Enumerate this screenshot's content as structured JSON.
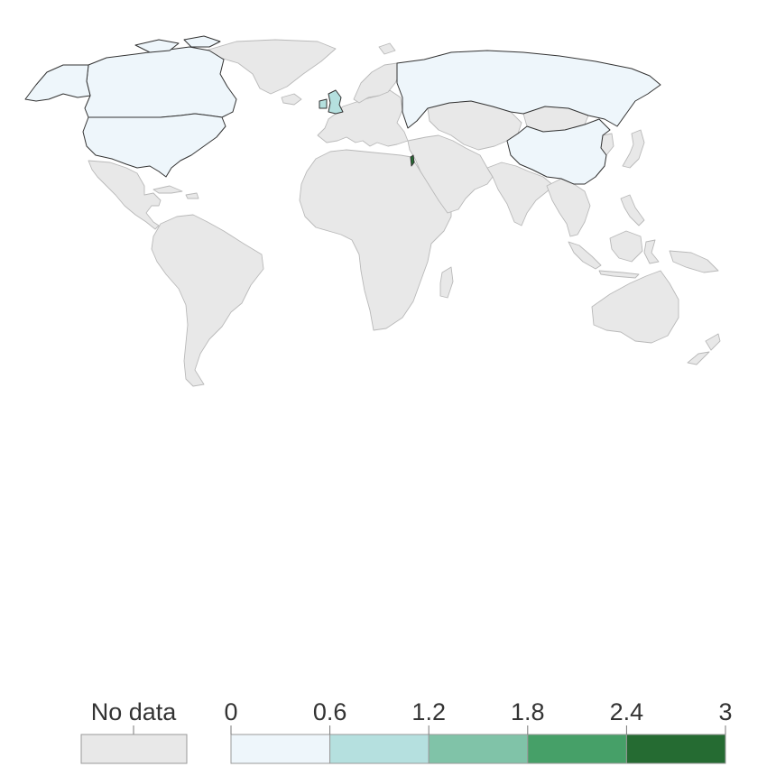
{
  "colors": {
    "no_data": "#e8e8e8",
    "border": "#b9b9b9",
    "highlight_outline": "#333333",
    "scale": [
      "#eef6fb",
      "#b5e0df",
      "#80c3a8",
      "#46a068",
      "#256b32"
    ]
  },
  "legend": {
    "no_data_label": "No data",
    "ticks": [
      "0",
      "0.6",
      "1.2",
      "1.8",
      "2.4",
      "3"
    ]
  },
  "map": {
    "regions": [
      {
        "name": "Canada",
        "bin": 0
      },
      {
        "name": "United States",
        "bin": 0
      },
      {
        "name": "Alaska",
        "bin": 0
      },
      {
        "name": "Russia",
        "bin": 0
      },
      {
        "name": "China",
        "bin": 0
      },
      {
        "name": "United Kingdom",
        "bin": 1
      },
      {
        "name": "Israel",
        "bin": 4
      }
    ]
  }
}
